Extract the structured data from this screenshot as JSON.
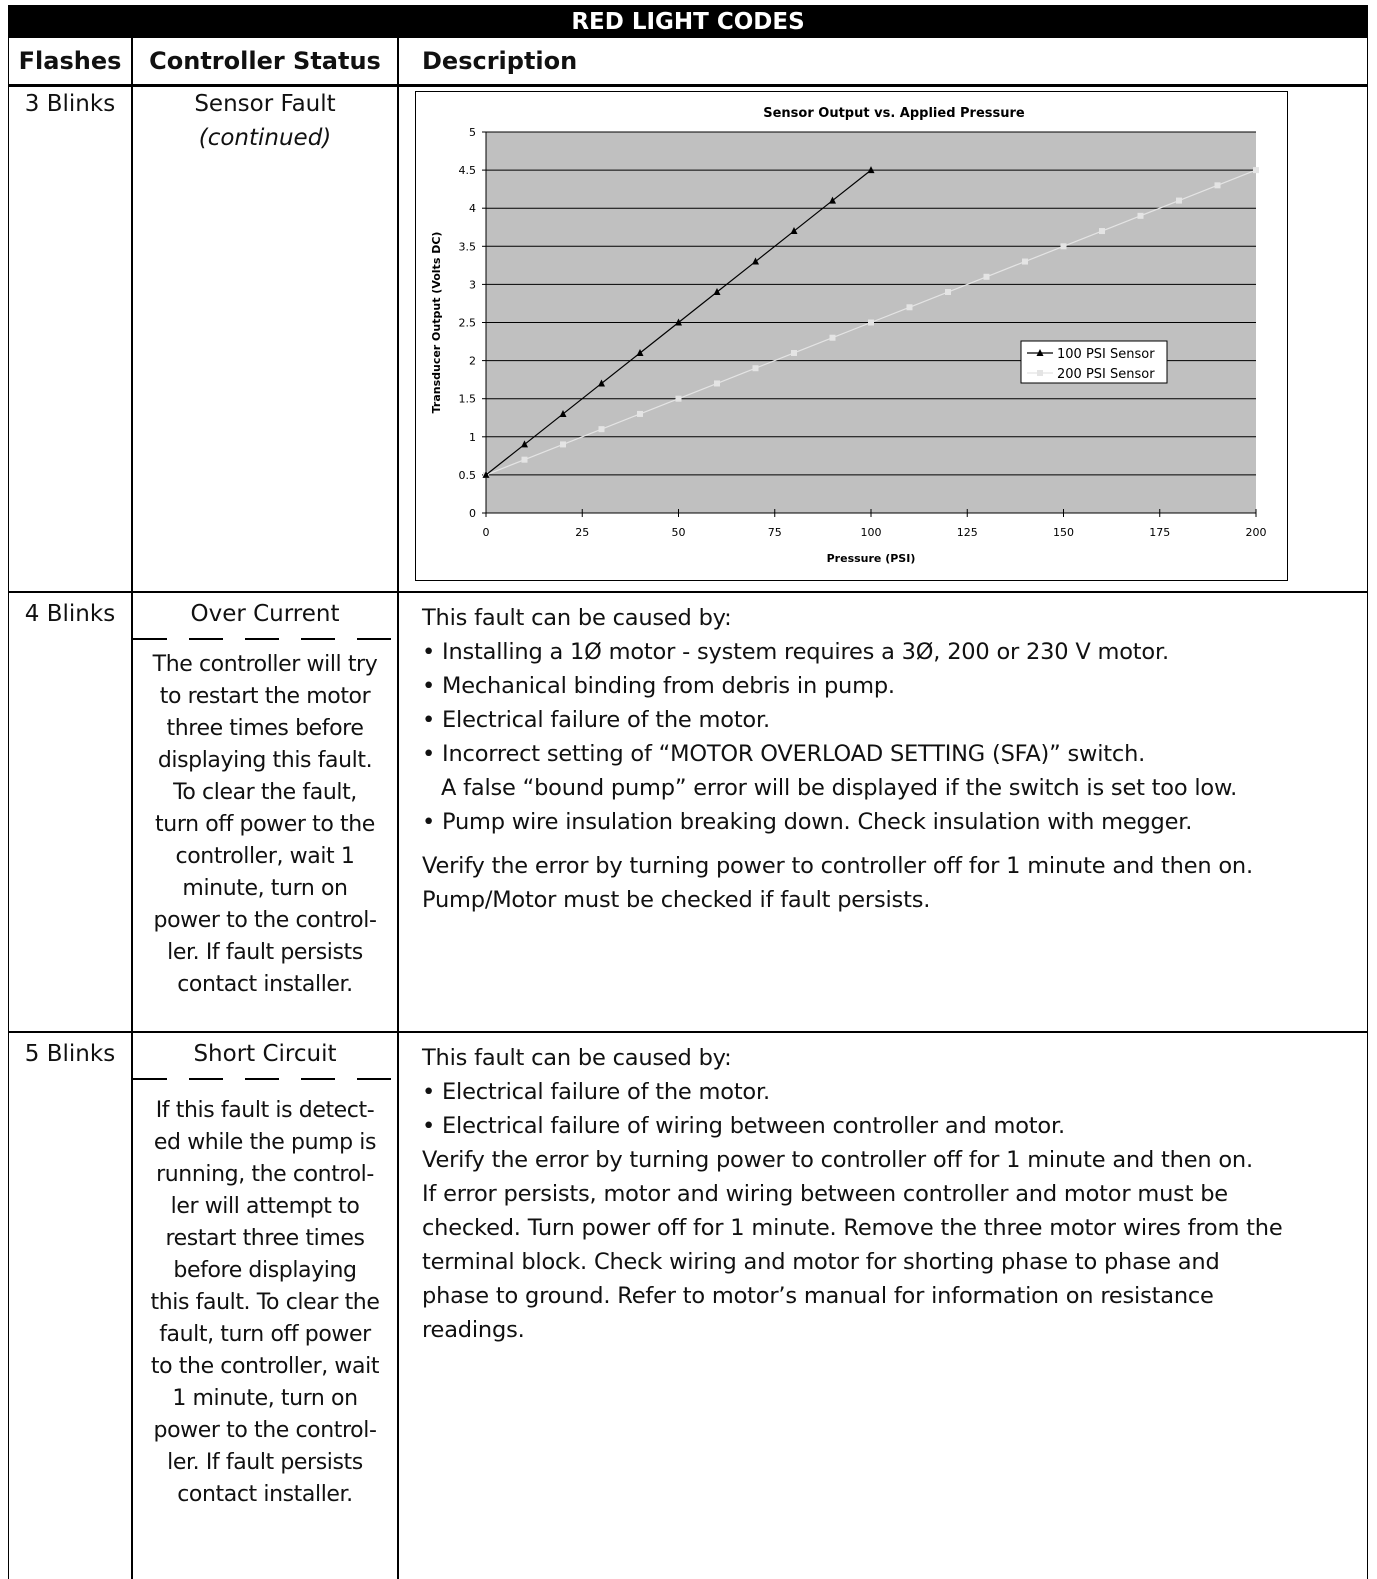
{
  "table": {
    "title": "RED LIGHT CODES",
    "headers": {
      "flashes": "Flashes",
      "status": "Controller Status",
      "description": "Description"
    }
  },
  "rows": [
    {
      "flashes": "3 Blinks",
      "status": "Sensor Fault",
      "status_sub": "(continued)"
    },
    {
      "flashes": "4 Blinks",
      "status": "Over Current",
      "note_lines": [
        "The controller will try",
        "to restart the motor",
        "three times before",
        "displaying this fault.",
        "To clear the fault,",
        "turn off power to the",
        "controller, wait 1",
        "minute, turn on",
        "power to the control-",
        "ler. If fault persists",
        "contact installer."
      ],
      "intro": "This fault can be caused by:",
      "bullets": [
        "• Installing a 1Ø motor - system requires a 3Ø, 200 or 230 V motor.",
        "• Mechanical binding from debris in pump.",
        "• Electrical failure of the motor.",
        "• Incorrect setting of “MOTOR OVERLOAD SETTING (SFA)” switch.",
        "A false “bound pump” error will be displayed if the switch is set too low.",
        "• Pump wire insulation breaking down. Check insulation with megger."
      ],
      "para_lines": [
        "Verify the error by turning power to controller off for 1 minute and then on.",
        "Pump/Motor must be checked if fault persists."
      ]
    },
    {
      "flashes": "5 Blinks",
      "status": "Short Circuit",
      "note_lines": [
        "If this fault is detect-",
        "ed while the pump is",
        "running, the control-",
        "ler will attempt to",
        "restart three times",
        "before displaying",
        "this fault. To clear the",
        "fault, turn off power",
        "to the controller, wait",
        "1 minute, turn on",
        "power to the control-",
        "ler. If fault persists",
        "contact installer."
      ],
      "intro": "This fault can be caused by:",
      "bullets": [
        "• Electrical failure of the motor.",
        "• Electrical failure of wiring between controller and motor."
      ],
      "para_lines": [
        "Verify the error by turning power to controller off for 1 minute and then on.",
        "If error persists, motor and wiring between controller and motor must be",
        "checked. Turn power off for 1 minute. Remove the three motor wires from the",
        "terminal block. Check wiring and motor for shorting phase to phase and",
        "phase to ground. Refer to motor’s manual for information on resistance",
        "readings."
      ]
    }
  ],
  "chart_data": {
    "type": "line",
    "title": "Sensor Output vs. Applied Pressure",
    "xlabel": "Pressure (PSI)",
    "ylabel": "Transducer Output (Volts DC)",
    "xlim": [
      0,
      200
    ],
    "ylim": [
      0,
      5
    ],
    "xticks": [
      0,
      25,
      50,
      75,
      100,
      125,
      150,
      175,
      200
    ],
    "yticks": [
      0,
      0.5,
      1,
      1.5,
      2,
      2.5,
      3,
      3.5,
      4,
      4.5,
      5
    ],
    "grid": true,
    "legend_position": "right",
    "plot_background": "#c0c0c0",
    "series": [
      {
        "name": "100 PSI Sensor",
        "color": "#000000",
        "marker": "triangle",
        "x": [
          0,
          10,
          20,
          30,
          40,
          50,
          60,
          70,
          80,
          90,
          100
        ],
        "y": [
          0.5,
          0.9,
          1.3,
          1.7,
          2.1,
          2.5,
          2.9,
          3.3,
          3.7,
          4.1,
          4.5
        ]
      },
      {
        "name": "200 PSI Sensor",
        "color": "#e4e4e4",
        "marker": "square",
        "x": [
          0,
          10,
          20,
          30,
          40,
          50,
          60,
          70,
          80,
          90,
          100,
          110,
          120,
          130,
          140,
          150,
          160,
          170,
          180,
          190,
          200
        ],
        "y": [
          0.5,
          0.7,
          0.9,
          1.1,
          1.3,
          1.5,
          1.7,
          1.9,
          2.1,
          2.3,
          2.5,
          2.7,
          2.9,
          3.1,
          3.3,
          3.5,
          3.7,
          3.9,
          4.1,
          4.3,
          4.5
        ]
      }
    ]
  }
}
